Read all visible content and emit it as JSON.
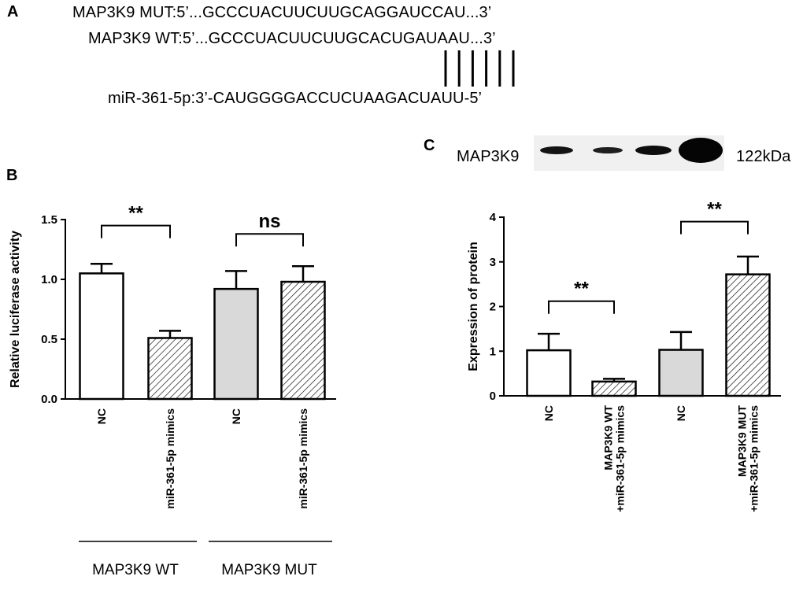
{
  "panels": {
    "a": {
      "letter": "A",
      "mut_line": "MAP3K9 MUT:5’...GCCCUACUUCUUGCAGGAUCCAU...3’",
      "wt_line": "MAP3K9 WT:5’...GCCCUACUUCUUGCACUGAUAAU...3’",
      "mirna_line": "miR-361-5p:3’-CAUGGGGACCUCUAAGACUAUU-5’",
      "pairing_lines": 6
    },
    "b": {
      "letter": "B"
    },
    "c": {
      "letter": "C",
      "blot_label": "MAP3K9",
      "blot_size": "122kDa",
      "blot_band_strengths": [
        0.75,
        0.55,
        0.85,
        1.0
      ]
    }
  },
  "colors": {
    "white_bar": "#ffffff",
    "gray_bar": "#d9d9d9",
    "stroke": "#000000"
  },
  "chart_data": [
    {
      "type": "bar",
      "panel": "B",
      "ylabel": "Relative luciferase activity",
      "ylim": [
        0,
        1.5
      ],
      "ytick_labels": [
        "0.0",
        "0.5",
        "1.0",
        "1.5"
      ],
      "yticks": [
        0,
        0.5,
        1.0,
        1.5
      ],
      "categories": [
        "NC",
        "miR-361-5p mimics",
        "NC",
        "miR-361-5p mimics"
      ],
      "values": [
        1.05,
        0.51,
        0.92,
        0.98
      ],
      "errors": [
        0.08,
        0.06,
        0.15,
        0.13
      ],
      "fills": [
        "white",
        "hatched",
        "gray",
        "hatched"
      ],
      "groups": [
        "MAP3K9 WT",
        "MAP3K9 MUT"
      ],
      "significance": [
        {
          "bars": [
            0,
            1
          ],
          "label": "**",
          "y": 1.45
        },
        {
          "bars": [
            2,
            3
          ],
          "label": "ns",
          "y": 1.38
        }
      ]
    },
    {
      "type": "bar",
      "panel": "C",
      "ylabel": "Expression of protein",
      "ylim": [
        0,
        4
      ],
      "ytick_labels": [
        "0",
        "1",
        "2",
        "3",
        "4"
      ],
      "yticks": [
        0,
        1,
        2,
        3,
        4
      ],
      "categories": [
        "NC",
        "MAP3K9 WT +miR-361-5p mimics",
        "NC",
        "MAP3K9 MUT +miR-361-5p mimics"
      ],
      "category_lines": [
        [
          "NC"
        ],
        [
          "MAP3K9 WT",
          "+miR-361-5p mimics"
        ],
        [
          "NC"
        ],
        [
          "MAP3K9 MUT",
          "+miR-361-5p mimics"
        ]
      ],
      "values": [
        1.02,
        0.32,
        1.03,
        2.72
      ],
      "errors": [
        0.37,
        0.06,
        0.4,
        0.4
      ],
      "fills": [
        "white",
        "hatched",
        "gray",
        "hatched"
      ],
      "significance": [
        {
          "bars": [
            0,
            1
          ],
          "label": "**",
          "y": 2.12
        },
        {
          "bars": [
            2,
            3
          ],
          "label": "**",
          "y": 3.9
        }
      ]
    }
  ]
}
